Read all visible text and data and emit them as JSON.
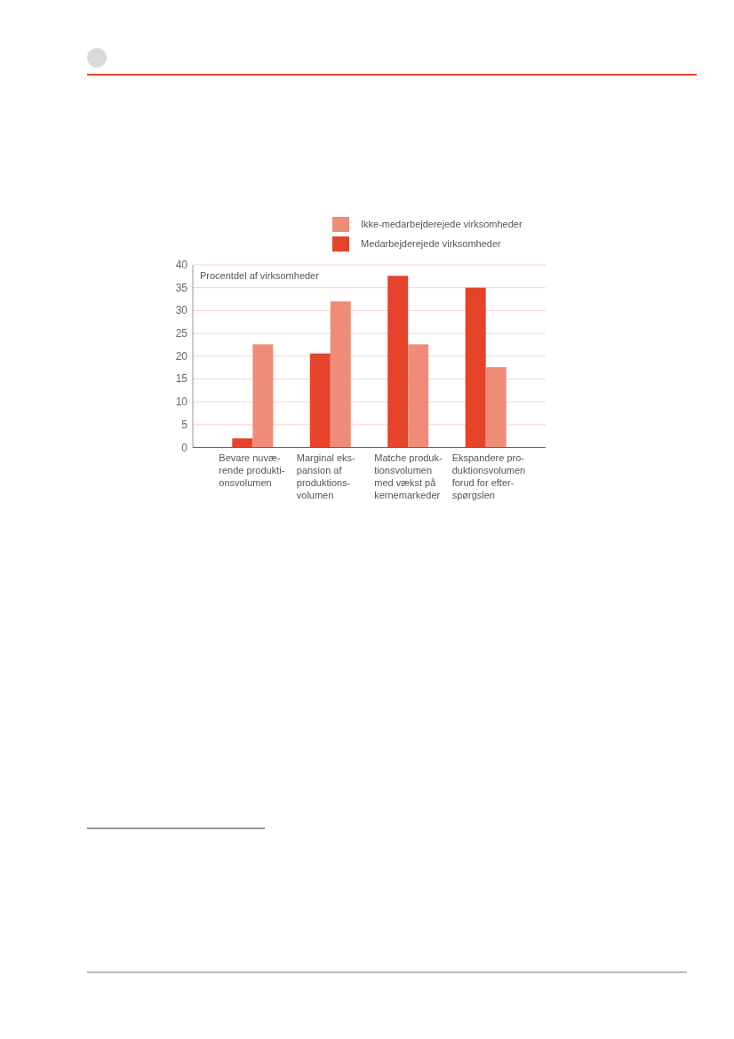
{
  "chart_data": {
    "type": "bar",
    "ylabel": "Procentdel af virksomheder",
    "categories": [
      "Bevare nuvæ-\nrende produkti-\nonsvolumen",
      "Marginal eks-\npansion af\nproduktions-\nvolumen",
      "Matche produk-\ntionsvolumen\nmed vækst på\nkernemarkeder",
      "Ekspandere pro-\nduktionsvolumen\nforud for efter-\nspørgslen"
    ],
    "series": [
      {
        "name": "Medarbejderejede virksomheder",
        "color": "#e5432a",
        "values": [
          2.0,
          20.6,
          37.6,
          35.0
        ]
      },
      {
        "name": "Ikke-medarbejderejede virksomheder",
        "color": "#ef8c77",
        "values": [
          22.6,
          32.0,
          22.6,
          17.6
        ]
      }
    ],
    "ylim": [
      0,
      40
    ],
    "yticks": [
      0,
      5,
      10,
      15,
      20,
      25,
      30,
      35,
      40
    ],
    "grid": "y",
    "legend": "top right"
  }
}
